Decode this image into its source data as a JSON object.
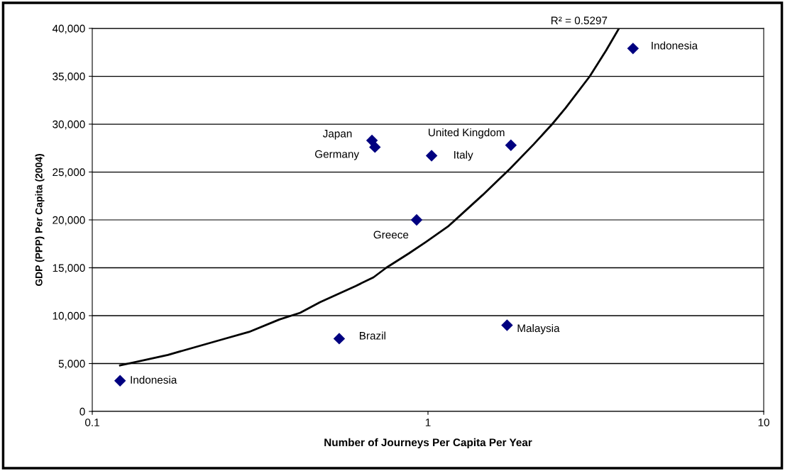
{
  "chart_data": {
    "type": "scatter",
    "xlabel": "Number of Journeys Per Capita Per Year",
    "ylabel": "GDP (PPP) Per Capita (2004)",
    "log": "x",
    "grid": "y",
    "legend": false,
    "marker": "diamond",
    "xlim": [
      0.1,
      10
    ],
    "xticks": [
      0.1,
      1,
      10
    ],
    "ylim": [
      0,
      40000
    ],
    "yticks": [
      {
        "value": 0,
        "label": "0"
      },
      {
        "value": 5000,
        "label": "5,000"
      },
      {
        "value": 10000,
        "label": "10,000"
      },
      {
        "value": 15000,
        "label": "15,000"
      },
      {
        "value": 20000,
        "label": "20,000"
      },
      {
        "value": 25000,
        "label": "25,000"
      },
      {
        "value": 30000,
        "label": "30,000"
      },
      {
        "value": 35000,
        "label": "35,000"
      },
      {
        "value": 40000,
        "label": "40,000"
      }
    ],
    "series": [
      {
        "color": "#000080",
        "x": [
          0.121,
          0.544,
          0.681,
          0.695,
          0.925,
          1.025,
          1.766,
          1.72,
          4.08
        ],
        "values": [
          3200,
          7600,
          28300,
          27600,
          20000,
          26700,
          27800,
          9000,
          37900
        ]
      },
      {
        "type": "line",
        "color": "#000000",
        "marker": "none",
        "x": [
          0.121,
          0.168,
          0.243,
          0.293,
          0.361,
          0.416,
          0.477,
          0.609,
          0.688,
          0.751,
          0.877,
          0.986,
          1.146,
          1.215,
          1.455,
          1.75,
          2.065,
          2.344,
          2.571,
          3.034,
          3.394,
          3.706
        ],
        "values": [
          4800,
          5900,
          7500,
          8300,
          9600,
          10300,
          11400,
          13100,
          14000,
          15000,
          16500,
          17700,
          19300,
          20100,
          22600,
          25300,
          27900,
          30000,
          31700,
          35000,
          37700,
          40000
        ]
      }
    ],
    "annotations": [
      {
        "text": "Indonesia",
        "x": 0.121,
        "y": 3200
      },
      {
        "text": "Brazil",
        "x": 0.544,
        "y": 7600
      },
      {
        "text": "Japan",
        "x": 0.681,
        "y": 28300
      },
      {
        "text": "Germany",
        "x": 0.695,
        "y": 27600
      },
      {
        "text": "Greece",
        "x": 0.925,
        "y": 20000
      },
      {
        "text": "Italy",
        "x": 1.025,
        "y": 26700
      },
      {
        "text": "United Kingdom",
        "x": 1.766,
        "y": 27800
      },
      {
        "text": "Malaysia",
        "x": 1.72,
        "y": 9000
      },
      {
        "text": "Indonesia",
        "x": 4.08,
        "y": 37900
      },
      "R² = 0.5297"
    ]
  }
}
